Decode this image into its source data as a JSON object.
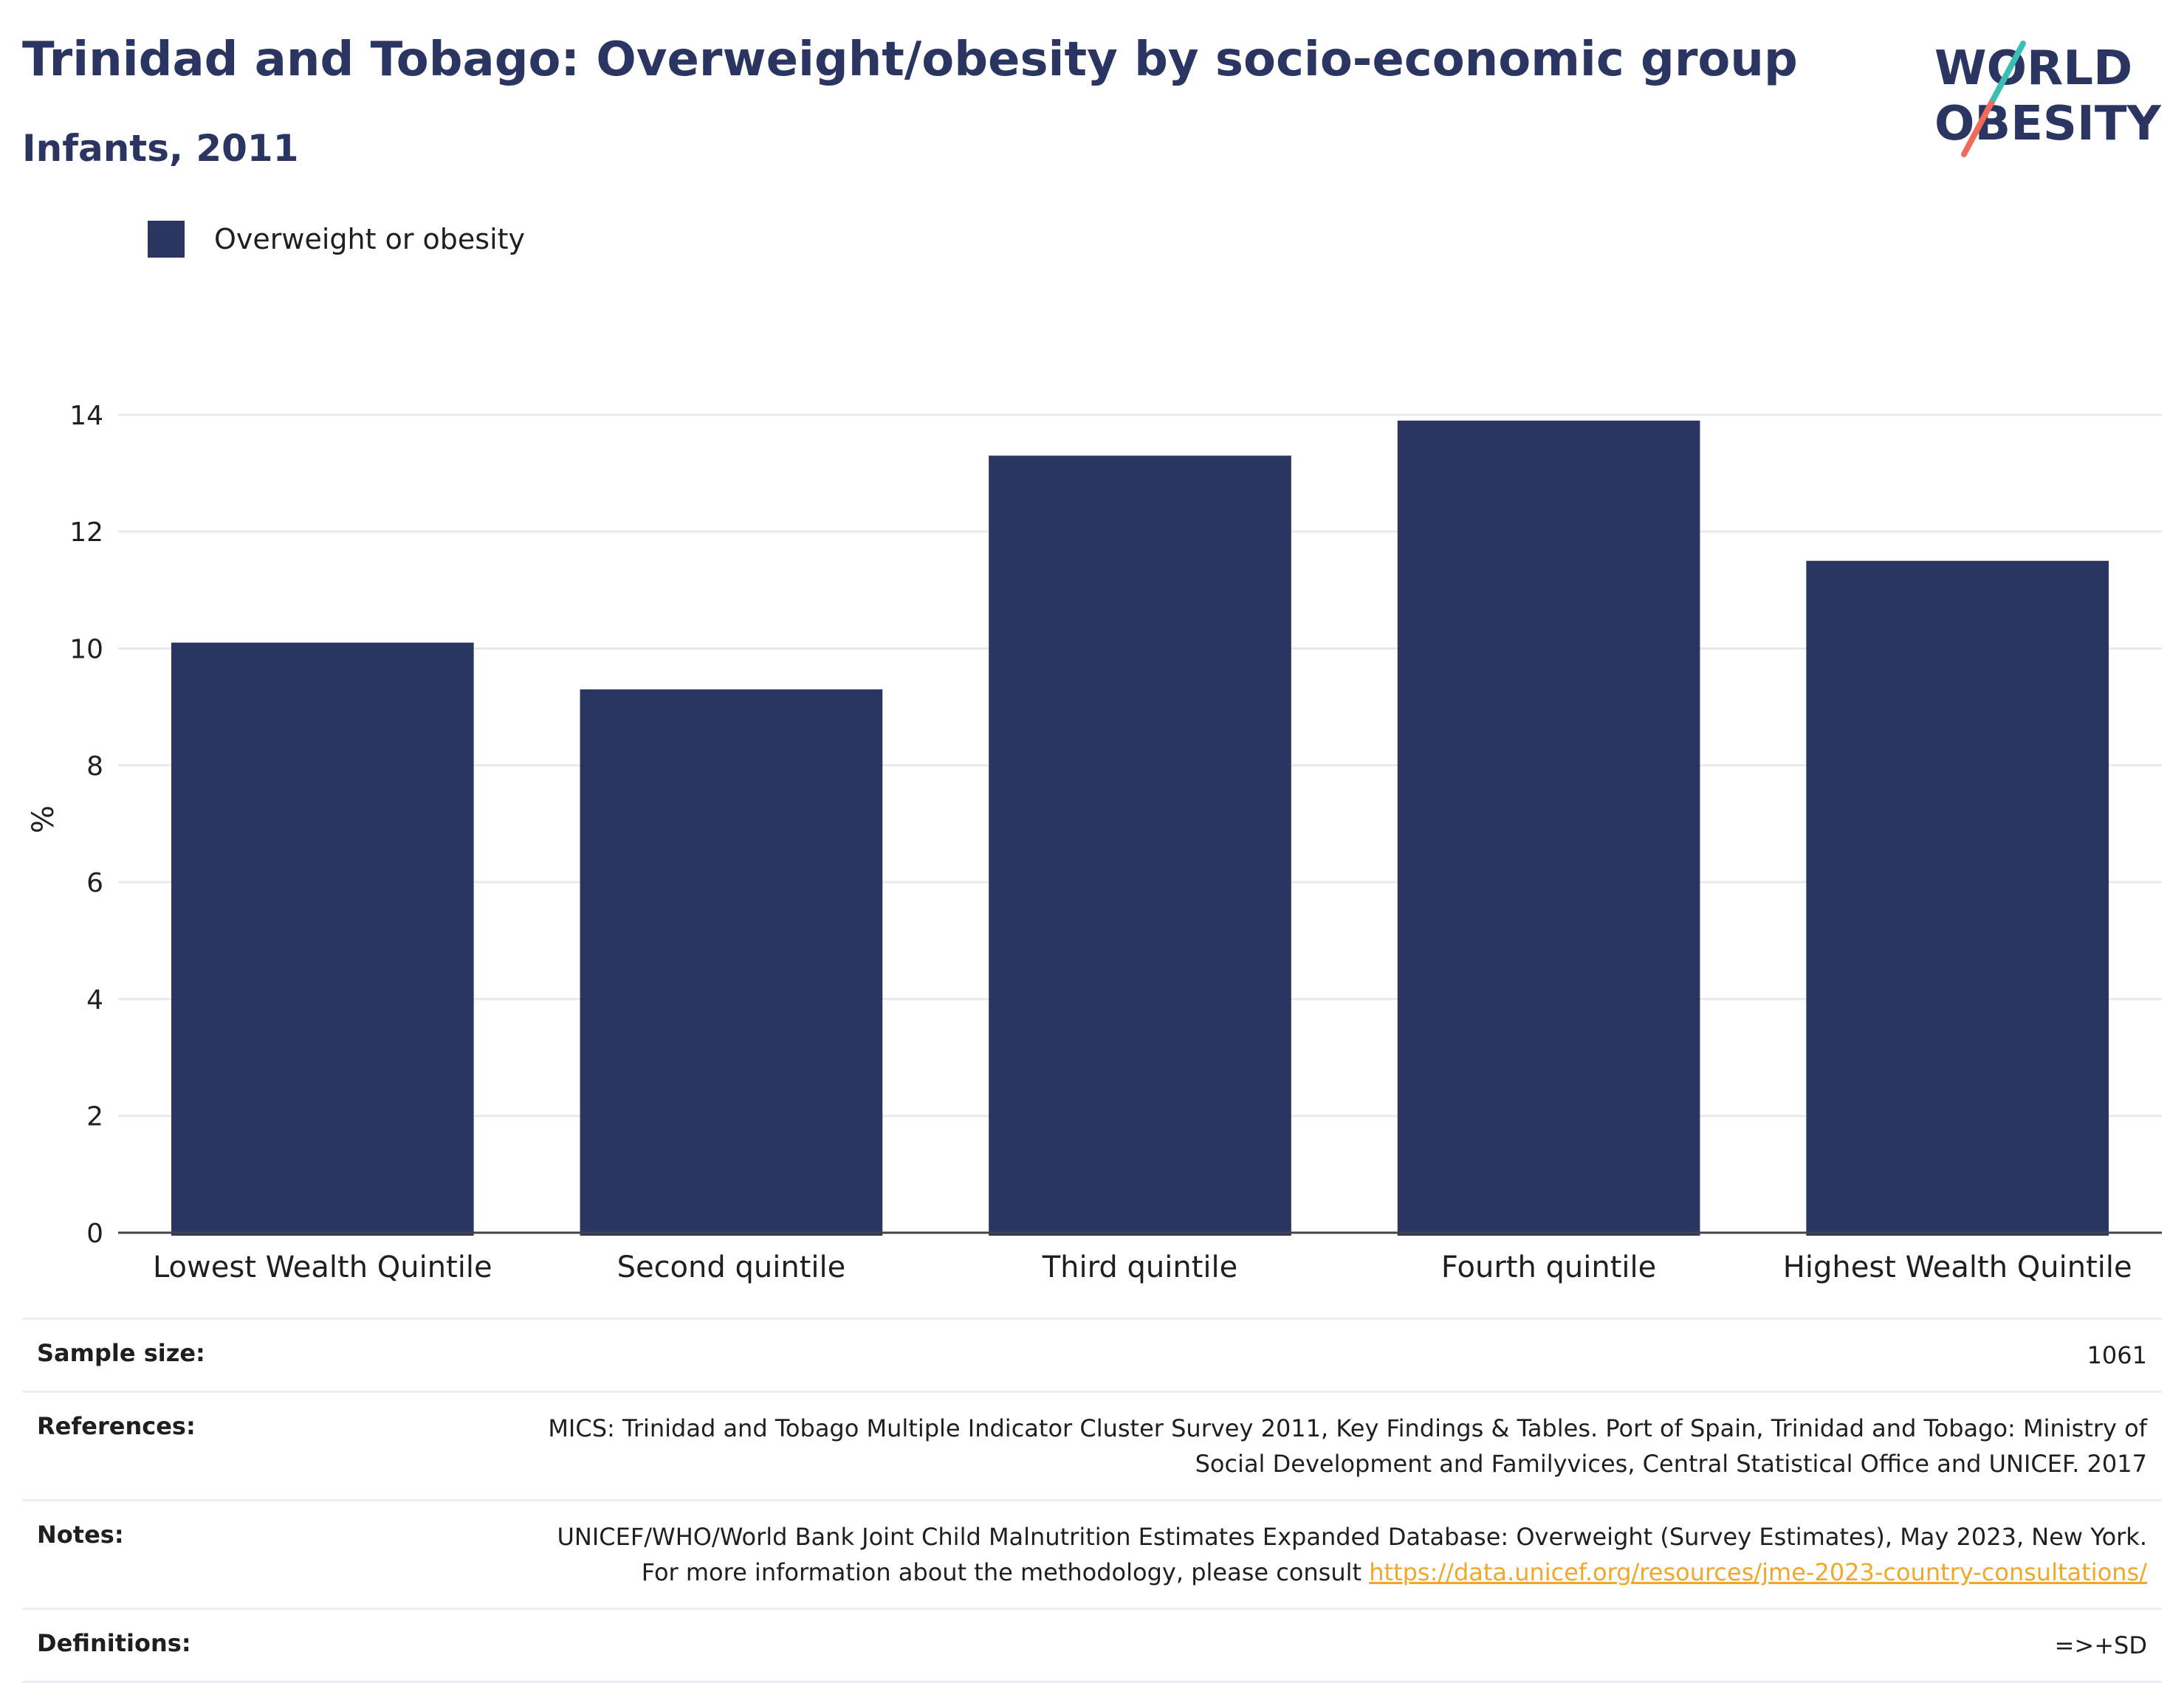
{
  "header": {
    "title": "Trinidad and Tobago: Overweight/obesity by socio-economic group",
    "subtitle": "Infants, 2011"
  },
  "logo": {
    "line1": "WORLD",
    "line2": "OBESITY",
    "accent_teal": "#3bbfb5",
    "accent_coral": "#ef6b5b"
  },
  "legend": {
    "label": "Overweight or obesity",
    "color": "#2b3561"
  },
  "chart_data": {
    "type": "bar",
    "categories": [
      "Lowest Wealth Quintile",
      "Second quintile",
      "Third quintile",
      "Fourth quintile",
      "Highest Wealth Quintile"
    ],
    "series": [
      {
        "name": "Overweight or obesity",
        "values": [
          10.1,
          9.3,
          13.3,
          13.9,
          11.5
        ],
        "color": "#2b3561"
      }
    ],
    "ylabel": "%",
    "xlabel": "",
    "ylim": [
      0,
      14
    ],
    "yticks": [
      0,
      2,
      4,
      6,
      8,
      10,
      12,
      14
    ],
    "grid": true,
    "legend_position": "top-left"
  },
  "info": {
    "sample_size_label": "Sample size:",
    "sample_size_value": "1061",
    "references_label": "References:",
    "references_value": "MICS: Trinidad and Tobago Multiple Indicator Cluster Survey 2011, Key Findings & Tables. Port of Spain, Trinidad and Tobago: Ministry of Social Development and Familyvices, Central Statistical Office and UNICEF. 2017",
    "notes_label": "Notes:",
    "notes_text": "UNICEF/WHO/World Bank Joint Child Malnutrition Estimates Expanded Database: Overweight (Survey Estimates), May 2023, New York. For more information about the methodology, please consult ",
    "notes_link": "https://data.unicef.org/resources/jme-2023-country-consultations/",
    "definitions_label": "Definitions:",
    "definitions_value": "=>+SD"
  }
}
